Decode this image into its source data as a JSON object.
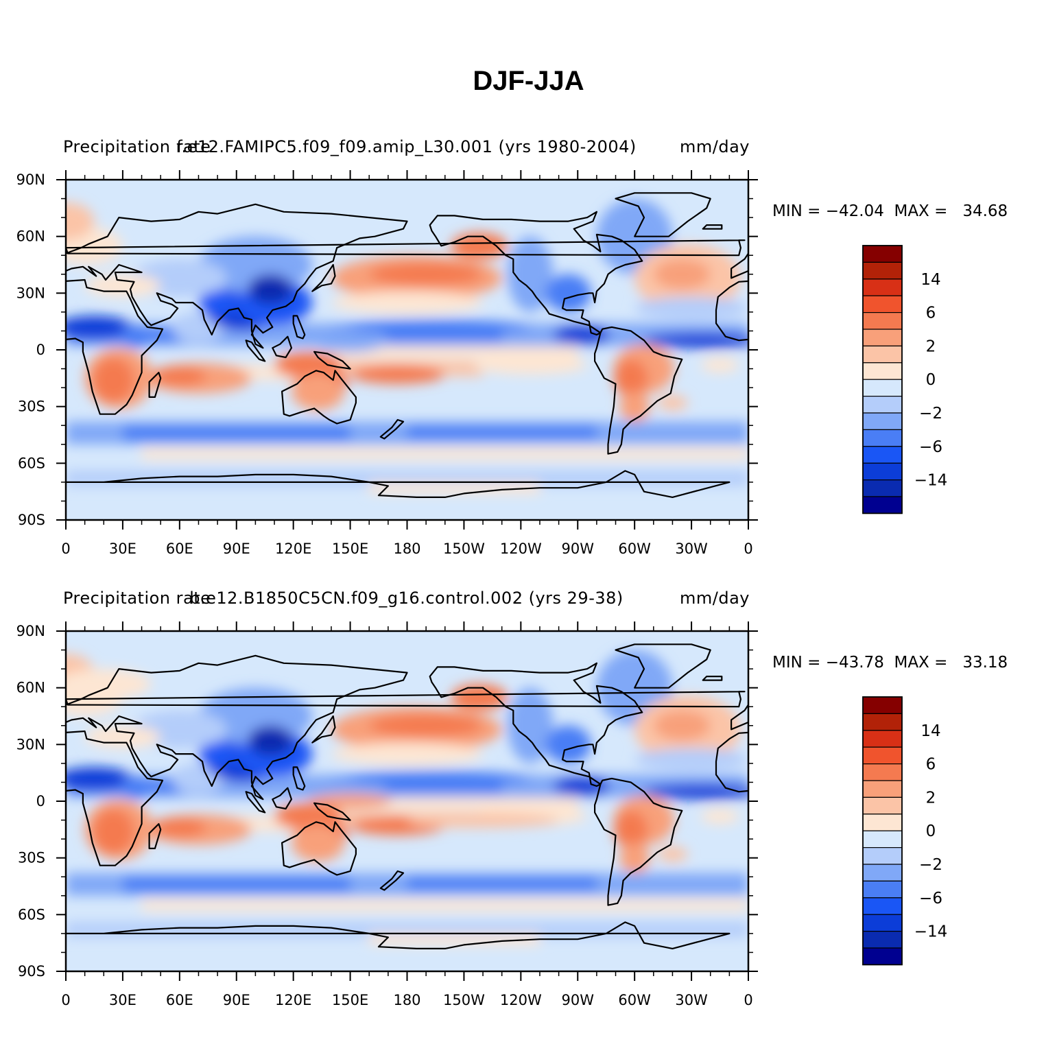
{
  "title": "DJF-JJA",
  "palette": [
    "#000090",
    "#0a2bb0",
    "#0c3dd8",
    "#1a56f5",
    "#4a7ef5",
    "#80a8f7",
    "#b4cdfa",
    "#d6e8fc",
    "#fde6d3",
    "#fbc4a7",
    "#f8a07a",
    "#f47a50",
    "#f0542d",
    "#d83016",
    "#b22208",
    "#850000"
  ],
  "colorbar_labels": [
    "14",
    "6",
    "2",
    "0",
    "−2",
    "−6",
    "−14"
  ],
  "lat_labels": [
    "90N",
    "60N",
    "30N",
    "0",
    "30S",
    "60S",
    "90S"
  ],
  "lon_labels": [
    "0",
    "30E",
    "60E",
    "90E",
    "120E",
    "150E",
    "180",
    "150W",
    "120W",
    "90W",
    "60W",
    "30W",
    "0"
  ],
  "panels": [
    {
      "left_label": "Precipitation rate",
      "center_label": "f.e12.FAMIPC5.f09_f09.amip_L30.001 (yrs 1980-2004)",
      "right_label": "mm/day",
      "min_text": "MIN = −42.04",
      "max_text": "MAX =   34.68"
    },
    {
      "left_label": "Precipitation rate",
      "center_label": "b.e12.B1850C5CN.f09_g16.control.002 (yrs 29-38)",
      "right_label": "mm/day",
      "min_text": "MIN = −43.78",
      "max_text": "MAX =   33.18"
    }
  ],
  "map_data": {
    "field": "Precipitation rate difference DJF minus JJA",
    "units": "mm/day",
    "levels": [
      -14,
      -6,
      -2,
      0,
      2,
      6,
      14
    ],
    "lat_range": [
      -90,
      90
    ],
    "lon_range": [
      0,
      360
    ]
  }
}
